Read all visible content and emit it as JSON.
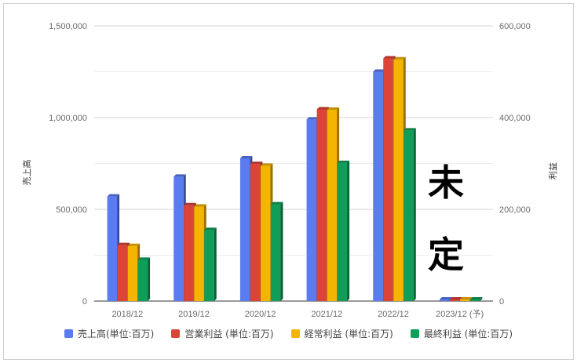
{
  "chart_data": {
    "type": "bar",
    "title": "",
    "categories": [
      "2018/12",
      "2019/12",
      "2020/12",
      "2021/12",
      "2022/12",
      "2023/12 (予)"
    ],
    "series": [
      {
        "name": "売上高(単位:百万)",
        "axis": "left",
        "color": "#5b7bf0",
        "values": [
          570000,
          678000,
          778000,
          990000,
          1250000,
          0
        ]
      },
      {
        "name": "営業利益 (単位:百万)",
        "axis": "right",
        "color": "#db4437",
        "values": [
          122000,
          209000,
          299000,
          418000,
          529000,
          0
        ]
      },
      {
        "name": "経常利益 (単位:百万)",
        "axis": "right",
        "color": "#f4b400",
        "values": [
          120000,
          206000,
          295000,
          417000,
          527000,
          0
        ]
      },
      {
        "name": "最終利益 (単位:百万)",
        "axis": "right",
        "color": "#0f9d58",
        "values": [
          90000,
          155000,
          211000,
          301000,
          372000,
          0
        ]
      }
    ],
    "y_left": {
      "label": "売上高",
      "ylim": [
        0,
        1500000
      ],
      "ticks": [
        "0",
        "500,000",
        "1,000,000",
        "1,500,000"
      ]
    },
    "y_right": {
      "label": "利益",
      "ylim": [
        0,
        600000
      ],
      "ticks": [
        "0",
        "200,000",
        "400,000",
        "600,000"
      ]
    },
    "annotation": {
      "line1": "未",
      "line2": "定"
    },
    "grid": true,
    "legend_position": "bottom"
  }
}
